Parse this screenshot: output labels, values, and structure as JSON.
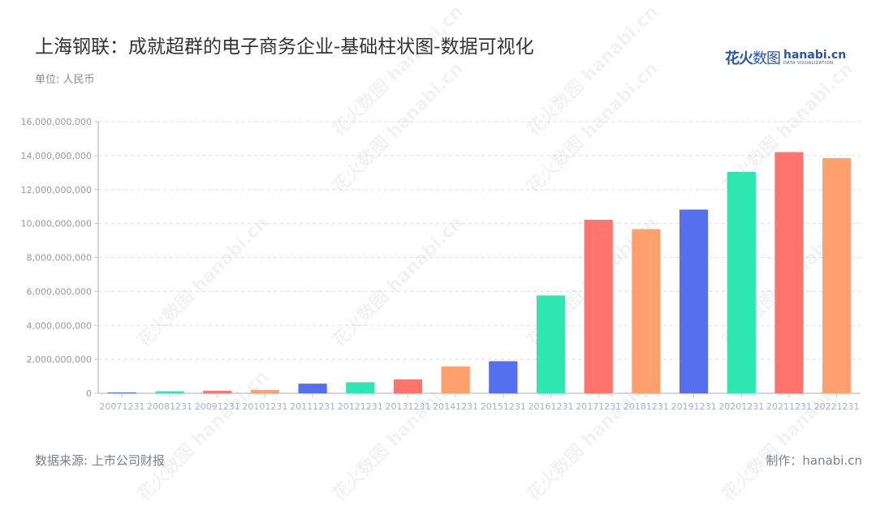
{
  "header": {
    "title": "上海钢联：成就超群的电子商务企业-基础柱状图-数据可视化",
    "unit": "单位: 人民币"
  },
  "logo": {
    "cn_bold": "花火",
    "cn_light": "数图",
    "en": "hanabi.cn",
    "tagline": "DATA VISUALIZATION"
  },
  "footer": {
    "source": "数据来源: 上市公司财报",
    "credit": "制作：hanabi.cn"
  },
  "watermark": "花火数图 hanabi.cn",
  "colors": [
    "#5470ee",
    "#2ee6b1",
    "#ff756e",
    "#ffa06e"
  ],
  "chart_data": {
    "type": "bar",
    "title": "上海钢联：成就超群的电子商务企业-基础柱状图-数据可视化",
    "xlabel": "",
    "ylabel": "单位: 人民币",
    "ylim": [
      0,
      16000000000
    ],
    "yticks": [
      0,
      2000000000,
      4000000000,
      6000000000,
      8000000000,
      10000000000,
      12000000000,
      14000000000,
      16000000000
    ],
    "ytick_labels": [
      "0",
      "2,000,000,000",
      "4,000,000,000",
      "6,000,000,000",
      "8,000,000,000",
      "10,000,000,000",
      "12,000,000,000",
      "14,000,000,000",
      "16,000,000,000"
    ],
    "grid": true,
    "legend": null,
    "categories": [
      "20071231",
      "20081231",
      "20091231",
      "20101231",
      "20111231",
      "20121231",
      "20131231",
      "20141231",
      "20151231",
      "20161231",
      "20171231",
      "20181231",
      "20191231",
      "20201231",
      "20211231",
      "20221231"
    ],
    "values": [
      50000000,
      120000000,
      150000000,
      200000000,
      570000000,
      650000000,
      820000000,
      1580000000,
      1890000000,
      5760000000,
      10220000000,
      9670000000,
      10820000000,
      13040000000,
      14210000000,
      13850000000
    ],
    "bar_colors": [
      "#5470ee",
      "#2ee6b1",
      "#ff756e",
      "#ffa06e",
      "#5470ee",
      "#2ee6b1",
      "#ff756e",
      "#ffa06e",
      "#5470ee",
      "#2ee6b1",
      "#ff756e",
      "#ffa06e",
      "#5470ee",
      "#2ee6b1",
      "#ff756e",
      "#ffa06e"
    ]
  }
}
